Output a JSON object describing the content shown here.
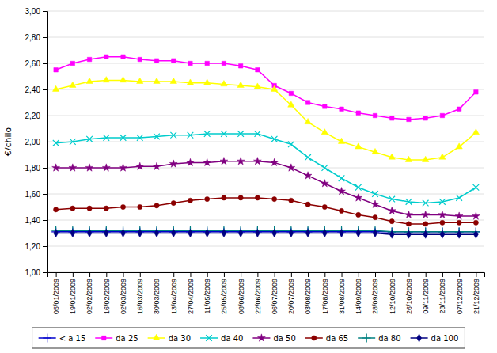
{
  "chart_data": {
    "type": "line",
    "ylabel": "€/chilo",
    "categories": [
      "05/01/2009",
      "19/01/2009",
      "02/02/2009",
      "16/02/2009",
      "02/03/2009",
      "16/03/2009",
      "30/03/2009",
      "13/04/2009",
      "27/04/2009",
      "11/05/2009",
      "25/05/2009",
      "08/06/2009",
      "22/06/2009",
      "06/07/2009",
      "20/07/2009",
      "03/08/2009",
      "17/08/2009",
      "31/08/2009",
      "14/09/2009",
      "28/09/2009",
      "12/10/2009",
      "26/10/2009",
      "09/11/2009",
      "23/11/2009",
      "07/12/2009",
      "21/12/2009"
    ],
    "ylim": [
      1.0,
      3.0
    ],
    "yticks": [
      {
        "value": 1.0,
        "label": "1,00"
      },
      {
        "value": 1.2,
        "label": "1,20"
      },
      {
        "value": 1.4,
        "label": "1,40"
      },
      {
        "value": 1.6,
        "label": "1,60"
      },
      {
        "value": 1.8,
        "label": "1,80"
      },
      {
        "value": 2.0,
        "label": "2,00"
      },
      {
        "value": 2.2,
        "label": "2,20"
      },
      {
        "value": 2.4,
        "label": "2,40"
      },
      {
        "value": 2.6,
        "label": "2,60"
      },
      {
        "value": 2.8,
        "label": "2,80"
      },
      {
        "value": 3.0,
        "label": "3,00"
      }
    ],
    "grid": true,
    "legend": "bottom",
    "series": [
      {
        "name": "< a 15",
        "color": "#0000CC",
        "marker": "plus",
        "values": [
          1.31,
          1.31,
          1.31,
          1.31,
          1.31,
          1.31,
          1.31,
          1.31,
          1.31,
          1.31,
          1.31,
          1.31,
          1.31,
          1.31,
          1.31,
          1.31,
          1.31,
          1.31,
          1.31,
          1.31,
          1.31,
          1.31,
          1.31,
          1.31,
          1.31,
          1.31
        ]
      },
      {
        "name": "da 25",
        "color": "#FF00FF",
        "marker": "square",
        "values": [
          2.55,
          2.6,
          2.63,
          2.65,
          2.65,
          2.63,
          2.62,
          2.62,
          2.6,
          2.6,
          2.6,
          2.58,
          2.55,
          2.43,
          2.37,
          2.3,
          2.27,
          2.25,
          2.22,
          2.2,
          2.18,
          2.17,
          2.18,
          2.2,
          2.25,
          2.38
        ]
      },
      {
        "name": "da 30",
        "color": "#FFFF00",
        "marker": "triangle",
        "values": [
          2.4,
          2.43,
          2.46,
          2.47,
          2.47,
          2.46,
          2.46,
          2.46,
          2.45,
          2.45,
          2.44,
          2.43,
          2.42,
          2.4,
          2.28,
          2.15,
          2.07,
          2.0,
          1.96,
          1.92,
          1.88,
          1.86,
          1.86,
          1.88,
          1.96,
          2.07
        ]
      },
      {
        "name": "da 40",
        "color": "#00CCCC",
        "marker": "x",
        "values": [
          1.99,
          2.0,
          2.02,
          2.03,
          2.03,
          2.03,
          2.04,
          2.05,
          2.05,
          2.06,
          2.06,
          2.06,
          2.06,
          2.02,
          1.98,
          1.88,
          1.8,
          1.72,
          1.65,
          1.6,
          1.56,
          1.54,
          1.53,
          1.54,
          1.57,
          1.65
        ]
      },
      {
        "name": "da 50",
        "color": "#800080",
        "marker": "star",
        "values": [
          1.8,
          1.8,
          1.8,
          1.8,
          1.8,
          1.81,
          1.81,
          1.83,
          1.84,
          1.84,
          1.85,
          1.85,
          1.85,
          1.84,
          1.8,
          1.74,
          1.68,
          1.62,
          1.57,
          1.52,
          1.47,
          1.44,
          1.44,
          1.44,
          1.43,
          1.43
        ]
      },
      {
        "name": "da 65",
        "color": "#8B0000",
        "marker": "circle",
        "values": [
          1.48,
          1.49,
          1.49,
          1.49,
          1.5,
          1.5,
          1.51,
          1.53,
          1.55,
          1.56,
          1.57,
          1.57,
          1.57,
          1.56,
          1.55,
          1.52,
          1.5,
          1.47,
          1.44,
          1.42,
          1.39,
          1.37,
          1.37,
          1.38,
          1.38,
          1.38
        ]
      },
      {
        "name": "da 80",
        "color": "#008080",
        "marker": "plus",
        "values": [
          1.32,
          1.32,
          1.32,
          1.32,
          1.32,
          1.32,
          1.32,
          1.32,
          1.32,
          1.32,
          1.32,
          1.32,
          1.32,
          1.32,
          1.32,
          1.32,
          1.32,
          1.32,
          1.32,
          1.32,
          1.31,
          1.31,
          1.31,
          1.31,
          1.31,
          1.31
        ]
      },
      {
        "name": "da 100",
        "color": "#000080",
        "marker": "diamond",
        "values": [
          1.3,
          1.3,
          1.3,
          1.3,
          1.3,
          1.3,
          1.3,
          1.3,
          1.3,
          1.3,
          1.3,
          1.3,
          1.3,
          1.3,
          1.3,
          1.3,
          1.3,
          1.3,
          1.3,
          1.3,
          1.29,
          1.29,
          1.29,
          1.29,
          1.29,
          1.29
        ]
      }
    ]
  }
}
